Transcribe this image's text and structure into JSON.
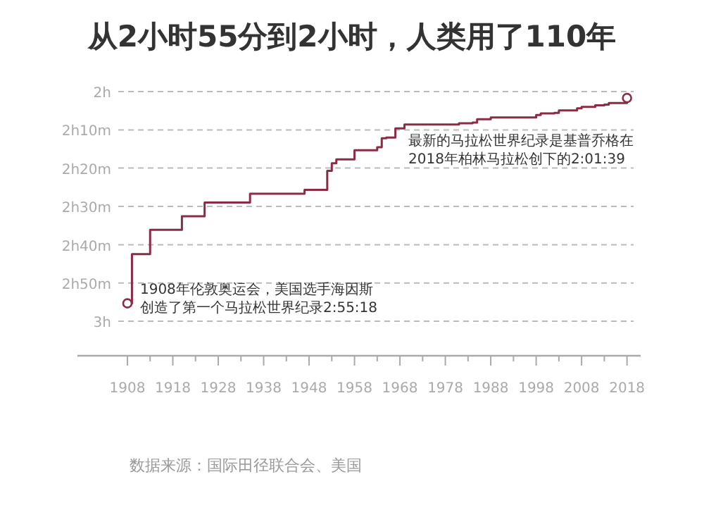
{
  "chart_data": {
    "type": "step",
    "title": "从2小时55分到2小时，人类用了110年",
    "x": [
      1908,
      1909,
      1909,
      1909,
      1909,
      1913,
      1913,
      1920,
      1925,
      1935,
      1947,
      1952,
      1953,
      1954,
      1958,
      1963,
      1964,
      1965,
      1967,
      1969,
      1981,
      1984,
      1985,
      1988,
      1998,
      1999,
      2002,
      2003,
      2007,
      2008,
      2011,
      2013,
      2014,
      2018
    ],
    "series": [
      {
        "color": "#8b2c45",
        "values": [
          2.922,
          2.88,
          2.782,
          2.735,
          2.708,
          2.638,
          2.602,
          2.543,
          2.483,
          2.445,
          2.428,
          2.345,
          2.312,
          2.295,
          2.255,
          2.242,
          2.203,
          2.2,
          2.16,
          2.143,
          2.138,
          2.135,
          2.12,
          2.113,
          2.102,
          2.095,
          2.093,
          2.082,
          2.073,
          2.067,
          2.06,
          2.057,
          2.05,
          2.028
        ]
      }
    ],
    "xlim": [
      1897,
      2021
    ],
    "xticks": [
      1908,
      {
        "value": 1913,
        "label": null
      },
      1918,
      {
        "value": 1923,
        "label": null
      },
      1928,
      {
        "value": 1933,
        "label": null
      },
      1938,
      {
        "value": 1943,
        "label": null
      },
      1948,
      {
        "value": 1953,
        "label": null
      },
      1958,
      {
        "value": 1963,
        "label": null
      },
      1968,
      {
        "value": 1973,
        "label": null
      },
      1978,
      {
        "value": 1983,
        "label": null
      },
      1988,
      {
        "value": 1993,
        "label": null
      },
      1998,
      {
        "value": 2003,
        "label": null
      },
      2008,
      {
        "value": 2013,
        "label": null
      },
      2018
    ],
    "ylim": [
      3.15,
      2
    ],
    "yticks": [
      {
        "value": 2,
        "label": "2h"
      },
      {
        "value": 2.167,
        "label": "2h10m"
      },
      {
        "value": 2.333,
        "label": "2h20m"
      },
      {
        "value": 2.5,
        "label": "2h30m"
      },
      {
        "value": 2.667,
        "label": "2h40m"
      },
      {
        "value": 2.833,
        "label": "2h50m"
      },
      {
        "value": 3,
        "label": "3h"
      }
    ],
    "grid": "y",
    "line_style": "solid",
    "annotations": [
      "最新的马拉松世界纪录是基普乔格在2018年柏林马拉松创下的2:01:39",
      {
        "text": "1908年伦敦奥运会，美国选手海因斯创造了第一个马拉松世界纪录2:55:18",
        "x": 1908,
        "y": 2.922
      },
      "数据来源：国际田径联合会、美国"
    ]
  }
}
